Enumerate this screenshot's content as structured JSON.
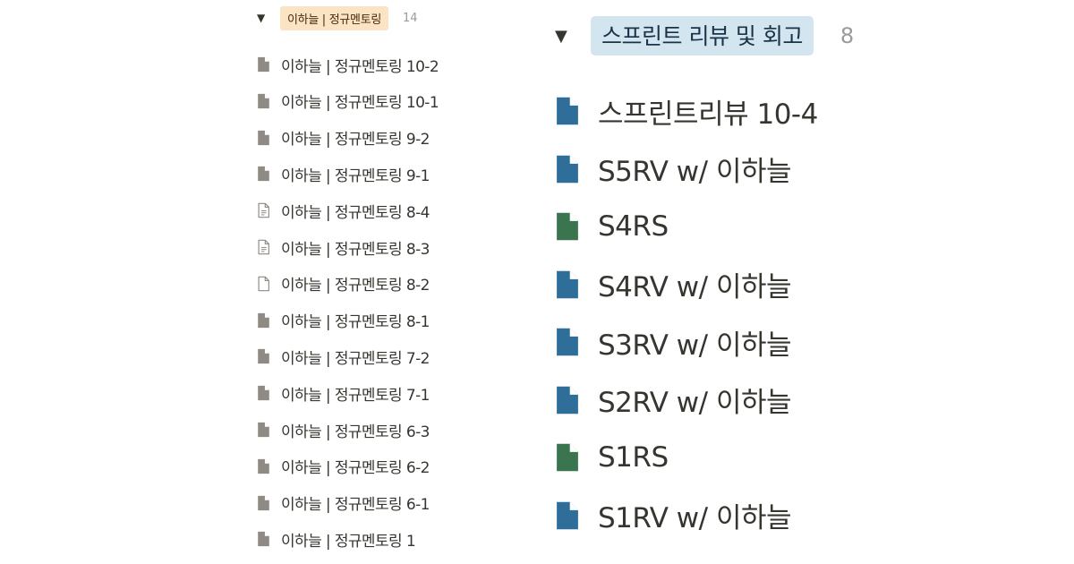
{
  "left_group": {
    "tag": "이하늘 | 정규멘토링",
    "count": "14",
    "items": [
      {
        "label": "이하늘 | 정규멘토링 10-2",
        "icon": "filled"
      },
      {
        "label": "이하늘 | 정규멘토링 10-1",
        "icon": "filled"
      },
      {
        "label": "이하늘 | 정규멘토링 9-2",
        "icon": "filled"
      },
      {
        "label": "이하늘 | 정규멘토링 9-1",
        "icon": "filled"
      },
      {
        "label": "이하늘 | 정규멘토링 8-4",
        "icon": "text-outline"
      },
      {
        "label": "이하늘 | 정규멘토링 8-3",
        "icon": "text-outline"
      },
      {
        "label": "이하늘 | 정규멘토링 8-2",
        "icon": "empty-outline"
      },
      {
        "label": "이하늘 | 정규멘토링 8-1",
        "icon": "filled"
      },
      {
        "label": "이하늘 | 정규멘토링 7-2",
        "icon": "filled"
      },
      {
        "label": "이하늘 | 정규멘토링 7-1",
        "icon": "filled"
      },
      {
        "label": "이하늘 | 정규멘토링 6-3",
        "icon": "filled"
      },
      {
        "label": "이하늘 | 정규멘토링 6-2",
        "icon": "filled"
      },
      {
        "label": "이하늘 | 정규멘토링 6-1",
        "icon": "filled"
      },
      {
        "label": "이하늘 | 정규멘토링 1",
        "icon": "filled"
      }
    ]
  },
  "right_group": {
    "tag": "스프린트 리뷰 및 회고",
    "count": "8",
    "items": [
      {
        "label": "스프린트리뷰 10-4",
        "icon": "blue-doc"
      },
      {
        "label": "S5RV w/ 이하늘",
        "icon": "blue-doc"
      },
      {
        "label": "S4RS",
        "icon": "green-doc"
      },
      {
        "label": "S4RV w/ 이하늘",
        "icon": "blue-doc"
      },
      {
        "label": "S3RV w/ 이하늘",
        "icon": "blue-doc"
      },
      {
        "label": "S2RV w/ 이하늘",
        "icon": "blue-doc"
      },
      {
        "label": "S1RS",
        "icon": "green-doc"
      },
      {
        "label": "S1RV w/ 이하늘",
        "icon": "blue-doc"
      }
    ]
  },
  "colors": {
    "left_tag_bg": "#fbe4c4",
    "right_tag_bg": "#d3e5ef",
    "doc_gray": "#8f8a84",
    "doc_blue": "#2f6e99",
    "doc_green": "#3a7550",
    "text": "#37352f",
    "muted": "#9b9a97"
  }
}
